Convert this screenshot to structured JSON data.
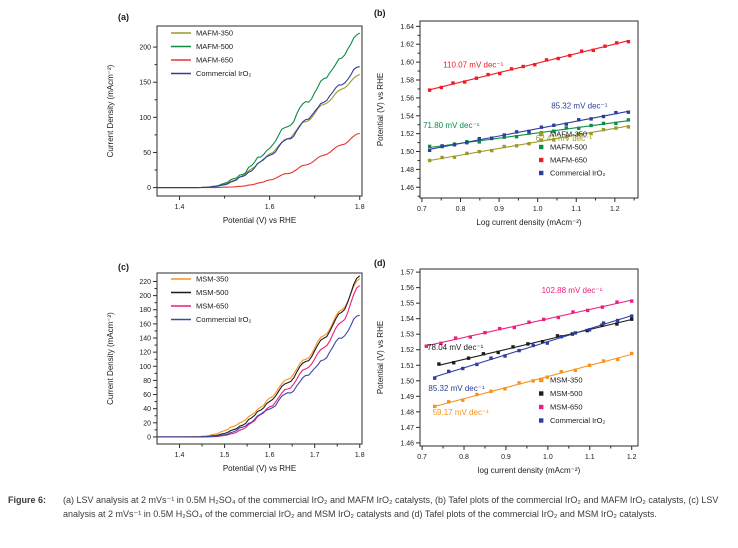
{
  "page": {
    "background": "#ffffff"
  },
  "caption": {
    "label": "Figure 6:",
    "text": "(a) LSV analysis at 2 mVs⁻¹ in 0.5M H₂SO₄ of the commercial IrO₂ and MAFM IrO₂ catalysts, (b) Tafel plots of the commercial IrO₂ and MAFM IrO₂ catalysts, (c) LSV analysis at 2 mVs⁻¹ in 0.5M H₂SO₄ of the commercial IrO₂ and MSM IrO₂ catalysts and (d) Tafel plots of the commercial IrO₂ and MSM IrO₂ catalysts."
  },
  "chart_data": [
    {
      "id": "a",
      "type": "line",
      "panel_label": "(a)",
      "xlabel": "Potential (V) vs RHE",
      "ylabel": "Current Density (mAcm⁻²)",
      "xlim": [
        1.35,
        1.805
      ],
      "ylim": [
        -12,
        230
      ],
      "xticks": {
        "values": [
          1.4,
          1.6,
          1.8
        ],
        "labels": [
          "1.4",
          "1.6",
          "1.8"
        ]
      },
      "xminor": [
        1.5,
        1.7
      ],
      "yticks": {
        "values": [
          0,
          50,
          100,
          150,
          200
        ],
        "labels": [
          "0",
          "50",
          "100",
          "150",
          "200"
        ]
      },
      "yminor": [
        25,
        75,
        125,
        175
      ],
      "legend_position": "top-left-inside",
      "series": [
        {
          "name": "MAFM-350",
          "color": "#9a9a28",
          "noise": 0.5,
          "x": [
            1.35,
            1.4,
            1.44,
            1.46,
            1.48,
            1.5,
            1.52,
            1.54,
            1.56,
            1.58,
            1.6,
            1.64,
            1.68,
            1.72,
            1.76,
            1.8
          ],
          "y": [
            0,
            0,
            0,
            0.5,
            2,
            5,
            10,
            17,
            26,
            37,
            48,
            70,
            94,
            118,
            140,
            161
          ]
        },
        {
          "name": "MAFM-500",
          "color": "#0e8c46",
          "noise": 2.0,
          "x": [
            1.35,
            1.4,
            1.44,
            1.46,
            1.48,
            1.5,
            1.52,
            1.54,
            1.56,
            1.58,
            1.6,
            1.64,
            1.68,
            1.72,
            1.76,
            1.8
          ],
          "y": [
            0,
            0,
            0,
            0.5,
            2,
            6,
            12,
            20,
            31,
            44,
            58,
            88,
            120,
            153,
            186,
            220
          ]
        },
        {
          "name": "MAFM-650",
          "color": "#e83432",
          "noise": 0.3,
          "x": [
            1.35,
            1.4,
            1.44,
            1.46,
            1.48,
            1.5,
            1.52,
            1.54,
            1.56,
            1.58,
            1.6,
            1.64,
            1.68,
            1.72,
            1.76,
            1.8
          ],
          "y": [
            0,
            0,
            0,
            0,
            0,
            0.5,
            1,
            2,
            4,
            7,
            11,
            20,
            32,
            46,
            61,
            77
          ]
        },
        {
          "name": "Commercial IrO₂",
          "color": "#2c3e9e",
          "noise": 1.4,
          "x": [
            1.35,
            1.4,
            1.44,
            1.46,
            1.48,
            1.5,
            1.52,
            1.54,
            1.56,
            1.58,
            1.6,
            1.64,
            1.68,
            1.72,
            1.76,
            1.8
          ],
          "y": [
            0,
            0,
            0,
            0.3,
            1.5,
            4,
            9,
            16,
            25,
            36,
            47,
            68,
            95,
            122,
            148,
            172
          ]
        }
      ]
    },
    {
      "id": "b",
      "type": "scatter-line",
      "panel_label": "(b)",
      "xlabel": "Log current density (mAcm⁻²)",
      "ylabel": "Potential (V) vs RHE",
      "xlim": [
        0.695,
        1.26
      ],
      "ylim": [
        1.448,
        1.646
      ],
      "xticks": {
        "values": [
          0.7,
          0.8,
          0.9,
          1.0,
          1.1,
          1.2
        ],
        "labels": [
          "0.7",
          "0.8",
          "0.9",
          "1.0",
          "1.1",
          "1.2"
        ]
      },
      "xminor": [
        0.75,
        0.85,
        0.95,
        1.05,
        1.15,
        1.25
      ],
      "yticks": {
        "values": [
          1.46,
          1.48,
          1.5,
          1.52,
          1.54,
          1.56,
          1.58,
          1.6,
          1.62,
          1.64
        ],
        "labels": [
          "1.46",
          "1.48",
          "1.50",
          "1.52",
          "1.54",
          "1.56",
          "1.58",
          "1.60",
          "1.62",
          "1.64"
        ]
      },
      "yminor": [
        1.45,
        1.47,
        1.49,
        1.51,
        1.53,
        1.55,
        1.57,
        1.59,
        1.61,
        1.63
      ],
      "legend_position": "bottom-right-inside",
      "series": [
        {
          "name": "MAFM-350",
          "color": "#9a9a28",
          "fit": [
            0.72,
            1.49,
            1.235,
            1.5285
          ],
          "n_points": 17,
          "slope_label": "62.41 mV dec⁻¹"
        },
        {
          "name": "MAFM-500",
          "color": "#0e8c46",
          "fit": [
            0.72,
            1.5045,
            1.235,
            1.5345
          ],
          "n_points": 17,
          "slope_label": "71.80 mV dec⁻¹"
        },
        {
          "name": "MAFM-650",
          "color": "#ee1c24",
          "fit": [
            0.72,
            1.569,
            1.235,
            1.624
          ],
          "n_points": 18,
          "slope_label": "110.07 mV dec⁻¹"
        },
        {
          "name": "Commercial IrO₂",
          "color": "#2c3e9e",
          "fit": [
            0.72,
            1.5025,
            1.235,
            1.545
          ],
          "n_points": 17,
          "slope_label": "85.32 mV dec⁻¹"
        }
      ],
      "annotations": [
        {
          "text": "110.07 mV dec⁻¹",
          "color": "#ee1c24",
          "x": 0.755,
          "y": 1.594
        },
        {
          "text": "85.32 mV dec⁻¹",
          "color": "#2c3e9e",
          "x": 1.035,
          "y": 1.548
        },
        {
          "text": "71.80 mV dec⁻¹",
          "color": "#0e8c46",
          "x": 0.703,
          "y": 1.5265
        },
        {
          "text": "62.41 mV dec⁻¹",
          "color": "#9a9a28",
          "x": 0.995,
          "y": 1.5115
        }
      ]
    },
    {
      "id": "c",
      "type": "line",
      "panel_label": "(c)",
      "xlabel": "Potential (V) vs RHE",
      "ylabel": "Current Density (mAcm⁻²)",
      "xlim": [
        1.35,
        1.805
      ],
      "ylim": [
        -10,
        232
      ],
      "xticks": {
        "values": [
          1.4,
          1.5,
          1.6,
          1.7,
          1.8
        ],
        "labels": [
          "1.4",
          "1.5",
          "1.6",
          "1.7",
          "1.8"
        ]
      },
      "xminor": [
        1.45,
        1.55,
        1.65,
        1.75
      ],
      "yticks": {
        "values": [
          0,
          20,
          40,
          60,
          80,
          100,
          120,
          140,
          160,
          180,
          200,
          220
        ],
        "labels": [
          "0",
          "20",
          "40",
          "60",
          "80",
          "100",
          "120",
          "140",
          "160",
          "180",
          "200",
          "220"
        ]
      },
      "yminor": [
        10,
        30,
        50,
        70,
        90,
        110,
        130,
        150,
        170,
        190,
        210
      ],
      "legend_position": "top-left-inside",
      "series": [
        {
          "name": "MSM-350",
          "color": "#f6921e",
          "noise": 0.4,
          "x": [
            1.35,
            1.4,
            1.44,
            1.46,
            1.48,
            1.5,
            1.52,
            1.54,
            1.56,
            1.58,
            1.6,
            1.64,
            1.68,
            1.72,
            1.76,
            1.8
          ],
          "y": [
            0,
            0,
            0.5,
            1.5,
            4,
            9,
            15,
            22,
            31,
            42,
            55,
            82,
            110,
            143,
            180,
            224
          ]
        },
        {
          "name": "MSM-500",
          "color": "#1c1c1c",
          "noise": 0.7,
          "x": [
            1.35,
            1.4,
            1.44,
            1.46,
            1.48,
            1.5,
            1.52,
            1.54,
            1.56,
            1.58,
            1.6,
            1.64,
            1.68,
            1.72,
            1.76,
            1.8
          ],
          "y": [
            0,
            0,
            0,
            0.5,
            2,
            5,
            10,
            17,
            27,
            38,
            51,
            77,
            106,
            139,
            177,
            228
          ]
        },
        {
          "name": "MSM-650",
          "color": "#ee1d80",
          "noise": 0.5,
          "x": [
            1.35,
            1.4,
            1.44,
            1.46,
            1.48,
            1.5,
            1.52,
            1.54,
            1.56,
            1.58,
            1.6,
            1.64,
            1.68,
            1.72,
            1.76,
            1.8
          ],
          "y": [
            0,
            0,
            0,
            0,
            0.5,
            2,
            5,
            11,
            20,
            31,
            43,
            68,
            96,
            126,
            163,
            214
          ]
        },
        {
          "name": "Commercial IrO₂",
          "color": "#3a4aab",
          "noise": 1.6,
          "x": [
            1.35,
            1.4,
            1.44,
            1.46,
            1.48,
            1.5,
            1.52,
            1.54,
            1.56,
            1.58,
            1.6,
            1.64,
            1.68,
            1.72,
            1.76,
            1.8
          ],
          "y": [
            0,
            0,
            0,
            0.3,
            1,
            3,
            7,
            14,
            22,
            31,
            41,
            61,
            85,
            110,
            142,
            172
          ]
        }
      ]
    },
    {
      "id": "d",
      "type": "scatter-line",
      "panel_label": "(d)",
      "xlabel": "log current density (mAcm⁻²)",
      "ylabel": "Potential (V) vs RHE",
      "xlim": [
        0.695,
        1.215
      ],
      "ylim": [
        1.458,
        1.572
      ],
      "xticks": {
        "values": [
          0.7,
          0.8,
          0.9,
          1.0,
          1.1,
          1.2
        ],
        "labels": [
          "0.7",
          "0.8",
          "0.9",
          "1.0",
          "1.1",
          "1.2"
        ]
      },
      "xminor": [
        0.75,
        0.85,
        0.95,
        1.05,
        1.15
      ],
      "yticks": {
        "values": [
          1.46,
          1.47,
          1.48,
          1.49,
          1.5,
          1.51,
          1.52,
          1.53,
          1.54,
          1.55,
          1.56,
          1.57
        ],
        "labels": [
          "1.46",
          "1.47",
          "1.48",
          "1.49",
          "1.50",
          "1.51",
          "1.52",
          "1.53",
          "1.54",
          "1.55",
          "1.56",
          "1.57"
        ]
      },
      "yminor": [],
      "legend_position": "bottom-right-inside",
      "series": [
        {
          "name": "MSM-350",
          "color": "#f6921e",
          "fit": [
            0.73,
            1.4835,
            1.2,
            1.517
          ],
          "n_points": 15,
          "slope_label": "59.17 mV dec⁻¹"
        },
        {
          "name": "MSM-500",
          "color": "#1c1c1c",
          "fit": [
            0.74,
            1.51,
            1.2,
            1.5395
          ],
          "n_points": 14,
          "slope_label": "78.04 mV dec⁻¹"
        },
        {
          "name": "MSM-650",
          "color": "#ee1d80",
          "fit": [
            0.71,
            1.5225,
            1.2,
            1.552
          ],
          "n_points": 15,
          "slope_label": "102.88 mV dec⁻¹"
        },
        {
          "name": "Commercial IrO₂",
          "color": "#2c3e9e",
          "fit": [
            0.73,
            1.5025,
            1.2,
            1.542
          ],
          "n_points": 15,
          "slope_label": "85.32 mV dec⁻¹"
        }
      ],
      "annotations": [
        {
          "text": "102.88 mV dec⁻¹",
          "color": "#ee1d80",
          "x": 0.985,
          "y": 1.5565
        },
        {
          "text": "78.04 mV dec⁻¹",
          "color": "#1c1c1c",
          "x": 0.712,
          "y": 1.5198
        },
        {
          "text": "85.32 mV dec⁻¹",
          "color": "#2c3e9e",
          "x": 0.715,
          "y": 1.4935
        },
        {
          "text": "59.17 mV dec⁻¹",
          "color": "#f6921e",
          "x": 0.725,
          "y": 1.478
        }
      ]
    }
  ]
}
